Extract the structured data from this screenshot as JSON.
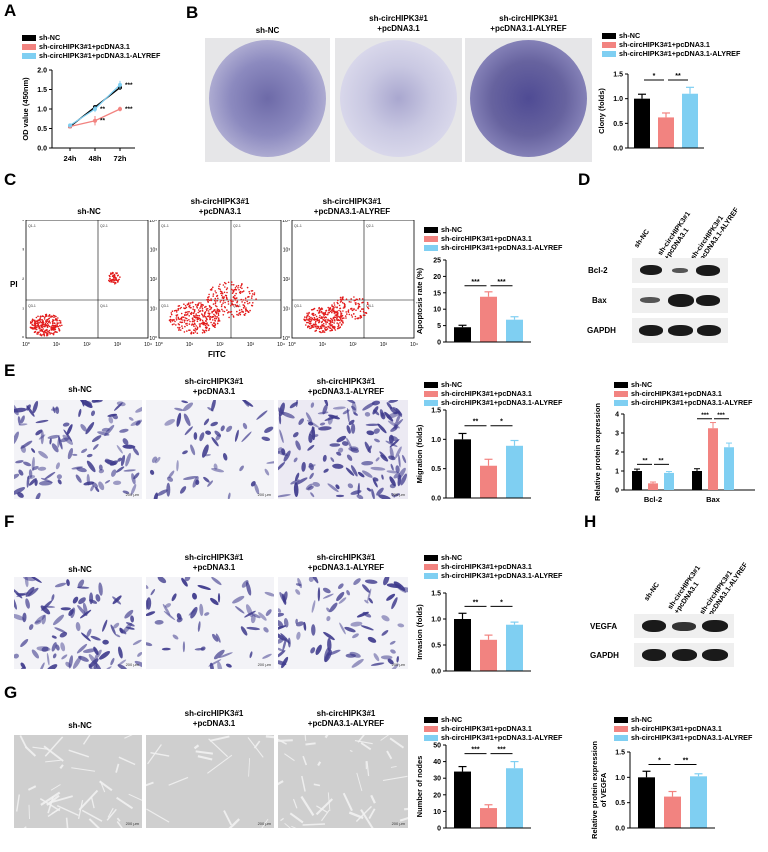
{
  "colors": {
    "black": "#000000",
    "red": "#f28380",
    "blue": "#7fcff2",
    "crystal_violet": "#3e3a8c",
    "flow_red": "#e21b1b"
  },
  "groups": [
    "sh-NC",
    "sh-circHIPK3#1+pcDNA3.1",
    "sh-circHIPK3#1+pcDNA3.1-ALYREF"
  ],
  "image_captions": [
    "sh-NC",
    "sh-circHIPK3#1\n+pcDNA3.1",
    "sh-circHIPK3#1\n+pcDNA3.1-ALYREF"
  ],
  "panels": {
    "A": {
      "letter": "A"
    },
    "B": {
      "letter": "B"
    },
    "C": {
      "letter": "C"
    },
    "D": {
      "letter": "D"
    },
    "E": {
      "letter": "E"
    },
    "F": {
      "letter": "F"
    },
    "G": {
      "letter": "G"
    },
    "H": {
      "letter": "H"
    }
  },
  "flow": {
    "xlabel": "FITC",
    "ylabel": "PI",
    "ticks": [
      "10⁰",
      "10¹",
      "10²",
      "10³",
      "10⁴"
    ],
    "quadrant_labels": [
      "Q1-1",
      "Q2-1",
      "Q3-1",
      "Q4-1"
    ]
  },
  "scale_bar": "200 μm",
  "western_D": {
    "lanes": [
      "sh-NC",
      "sh-circHIPK3#1\n+pcDNA3.1",
      "sh-circHIPK3#1\n+pcDNA3.1-ALYREF"
    ],
    "rows": [
      "Bcl-2",
      "Bax",
      "GAPDH"
    ]
  },
  "western_H": {
    "lanes": [
      "sh-NC",
      "sh-circHIPK3#1\n+pcDNA3.1",
      "sh-circHIPK3#1\n+pcDNA3.1-ALYREF"
    ],
    "rows": [
      "VEGFA",
      "GAPDH"
    ]
  },
  "chart_data": [
    {
      "id": "A",
      "type": "line",
      "x": [
        "24h",
        "48h",
        "72h"
      ],
      "ylabel": "OD value (450nm)",
      "ylim": [
        0,
        2.0
      ],
      "yticks": [
        0,
        0.5,
        1.0,
        1.5,
        2.0
      ],
      "series": [
        {
          "name": "sh-NC",
          "color": "#000000",
          "values": [
            0.55,
            1.05,
            1.55
          ],
          "err": [
            0.04,
            0.05,
            0.06
          ],
          "sig": [
            "",
            "",
            ""
          ]
        },
        {
          "name": "sh-circHIPK3#1+pcDNA3.1",
          "color": "#f28380",
          "values": [
            0.55,
            0.7,
            1.0
          ],
          "err": [
            0.04,
            0.12,
            0.06
          ],
          "sig": [
            "",
            "**",
            "***"
          ]
        },
        {
          "name": "sh-circHIPK3#1+pcDNA3.1-ALYREF",
          "color": "#7fcff2",
          "values": [
            0.58,
            1.0,
            1.62
          ],
          "err": [
            0.04,
            0.08,
            0.1
          ],
          "sig": [
            "",
            "**",
            "***"
          ]
        }
      ]
    },
    {
      "id": "B",
      "type": "bar",
      "ylabel": "Clony (folds)",
      "ylim": [
        0,
        1.5
      ],
      "yticks": [
        0,
        0.5,
        1.0,
        1.5
      ],
      "series": [
        {
          "name": "sh-NC",
          "value": 1.0,
          "err": 0.09
        },
        {
          "name": "sh-circHIPK3#1+pcDNA3.1",
          "value": 0.62,
          "err": 0.09
        },
        {
          "name": "sh-circHIPK3#1+pcDNA3.1-ALYREF",
          "value": 1.1,
          "err": 0.13
        }
      ],
      "sig": [
        {
          "from": 0,
          "to": 1,
          "label": "*"
        },
        {
          "from": 1,
          "to": 2,
          "label": "**"
        }
      ]
    },
    {
      "id": "C",
      "type": "bar",
      "ylabel": "Apoptosis rate (%)",
      "ylim": [
        0,
        25
      ],
      "yticks": [
        0,
        5,
        10,
        15,
        20,
        25
      ],
      "series": [
        {
          "name": "sh-NC",
          "value": 4.5,
          "err": 0.6
        },
        {
          "name": "sh-circHIPK3#1+pcDNA3.1",
          "value": 13.8,
          "err": 1.5
        },
        {
          "name": "sh-circHIPK3#1+pcDNA3.1-ALYREF",
          "value": 6.8,
          "err": 0.9
        }
      ],
      "sig": [
        {
          "from": 0,
          "to": 1,
          "label": "***"
        },
        {
          "from": 1,
          "to": 2,
          "label": "***"
        }
      ]
    },
    {
      "id": "E1",
      "type": "bar",
      "ylabel": "Migration (folds)",
      "ylim": [
        0,
        1.5
      ],
      "yticks": [
        0,
        0.5,
        1.0,
        1.5
      ],
      "series": [
        {
          "name": "sh-NC",
          "value": 1.0,
          "err": 0.1
        },
        {
          "name": "sh-circHIPK3#1+pcDNA3.1",
          "value": 0.55,
          "err": 0.11
        },
        {
          "name": "sh-circHIPK3#1+pcDNA3.1-ALYREF",
          "value": 0.89,
          "err": 0.09
        }
      ],
      "sig": [
        {
          "from": 0,
          "to": 1,
          "label": "**"
        },
        {
          "from": 1,
          "to": 2,
          "label": "*"
        }
      ]
    },
    {
      "id": "E2",
      "type": "grouped-bar",
      "ylabel": "Relative protein expression",
      "ylim": [
        0,
        4
      ],
      "yticks": [
        0,
        1,
        2,
        3,
        4
      ],
      "categories": [
        "Bcl-2",
        "Bax"
      ],
      "series": [
        {
          "name": "sh-NC",
          "values": [
            1.0,
            1.0
          ],
          "err": [
            0.1,
            0.12
          ]
        },
        {
          "name": "sh-circHIPK3#1+pcDNA3.1",
          "values": [
            0.35,
            3.25
          ],
          "err": [
            0.07,
            0.3
          ]
        },
        {
          "name": "sh-circHIPK3#1+pcDNA3.1-ALYREF",
          "values": [
            0.9,
            2.25
          ],
          "err": [
            0.07,
            0.22
          ]
        }
      ],
      "sig": [
        [
          "**",
          "**"
        ],
        [
          "***",
          "***"
        ]
      ]
    },
    {
      "id": "F",
      "type": "bar",
      "ylabel": "Invasion (folds)",
      "ylim": [
        0,
        1.5
      ],
      "yticks": [
        0,
        0.5,
        1.0,
        1.5
      ],
      "series": [
        {
          "name": "sh-NC",
          "value": 1.0,
          "err": 0.11
        },
        {
          "name": "sh-circHIPK3#1+pcDNA3.1",
          "value": 0.6,
          "err": 0.09
        },
        {
          "name": "sh-circHIPK3#1+pcDNA3.1-ALYREF",
          "value": 0.89,
          "err": 0.05
        }
      ],
      "sig": [
        {
          "from": 0,
          "to": 1,
          "label": "**"
        },
        {
          "from": 1,
          "to": 2,
          "label": "*"
        }
      ]
    },
    {
      "id": "G1",
      "type": "bar",
      "ylabel": "Number of nodes",
      "ylim": [
        0,
        50
      ],
      "yticks": [
        0,
        10,
        20,
        30,
        40,
        50
      ],
      "series": [
        {
          "name": "sh-NC",
          "value": 34,
          "err": 3
        },
        {
          "name": "sh-circHIPK3#1+pcDNA3.1",
          "value": 12,
          "err": 2
        },
        {
          "name": "sh-circHIPK3#1+pcDNA3.1-ALYREF",
          "value": 36,
          "err": 4
        }
      ],
      "sig": [
        {
          "from": 0,
          "to": 1,
          "label": "***"
        },
        {
          "from": 1,
          "to": 2,
          "label": "***"
        }
      ]
    },
    {
      "id": "G2",
      "type": "bar",
      "ylabel": "Relative protein expression\nof VEGFA",
      "ylim": [
        0,
        1.5
      ],
      "yticks": [
        0,
        0.5,
        1.0,
        1.5
      ],
      "series": [
        {
          "name": "sh-NC",
          "value": 1.0,
          "err": 0.12
        },
        {
          "name": "sh-circHIPK3#1+pcDNA3.1",
          "value": 0.62,
          "err": 0.1
        },
        {
          "name": "sh-circHIPK3#1+pcDNA3.1-ALYREF",
          "value": 1.02,
          "err": 0.05
        }
      ],
      "sig": [
        {
          "from": 0,
          "to": 1,
          "label": "*"
        },
        {
          "from": 1,
          "to": 2,
          "label": "**"
        }
      ]
    }
  ]
}
